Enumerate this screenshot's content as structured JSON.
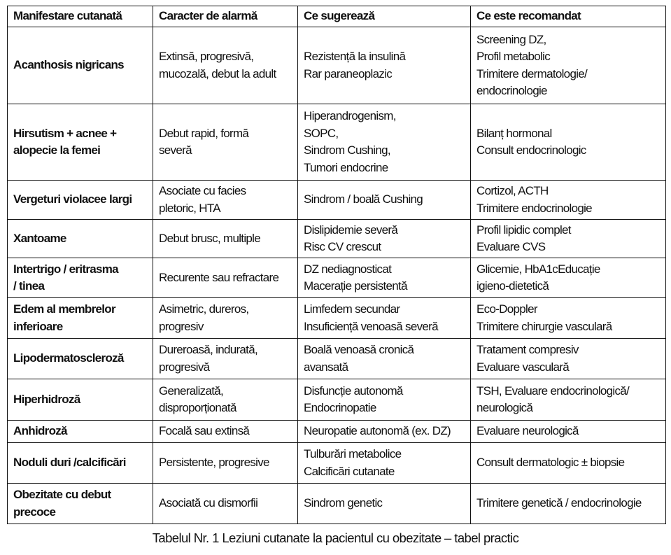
{
  "table": {
    "headers": [
      "Manifestare cutanată",
      "Caracter de alarmă",
      "Ce sugerează",
      "Ce este recomandat"
    ],
    "rows": [
      [
        "Acanthosis nigricans",
        "Extinsă, progresivă,\nmucozală, debut la adult",
        "Rezistență la insulină\nRar paraneoplazic",
        "Screening DZ,\nProfil metabolic\nTrimitere dermatologie/\nendocrinologie"
      ],
      [
        "Hirsutism + acnee +\nalopecie la femei",
        "Debut rapid, formă\nsevеră",
        "Hiperandrogenism,\nSOPC,\nSindrom Cushing,\nTumori endocrine",
        "Bilanț hormonal\nConsult endocrinologic"
      ],
      [
        "Vergeturi violacee largi",
        "Asociate cu facies\npletoric, HTA",
        "Sindrom / boală Cushing",
        "Cortizol, ACTH\nTrimitere endocrinologie"
      ],
      [
        "Xantoame",
        "Debut brusc, multiple",
        "Dislipidemie severă\nRisc CV crescut",
        "Profil lipidic complet\nEvaluare CVS"
      ],
      [
        "Intertrigo / eritrasma\n/ tinea",
        "Recurente sau refractare",
        "DZ nediagnosticat\nMacerație persistentă",
        "Glicemie, HbA1cEducație\nigieno-dietetică"
      ],
      [
        "Edem al membrelor\ninferioare",
        "Asimetric, dureros,\nprogresiv",
        "Limfedem secundar\nInsuficiență venoasă severă",
        "Eco-Doppler\nTrimitere chirurgie vasculară"
      ],
      [
        "Lipodermatoscleroză",
        "Dureroasă, indurată,\nprogresivă",
        "Boală venoasă cronică\navansată",
        "Tratament compresiv\nEvaluare vasculară"
      ],
      [
        "Hiperhidroză",
        "Generalizată,\ndisproporționată",
        "Disfuncție autonomă\nEndocrinopatie",
        "TSH, Evaluare endocrinologică/\nneurologică"
      ],
      [
        "Anhidroză",
        "Focală sau extinsă",
        "Neuropatie autonomă (ex. DZ)",
        "Evaluare neurologică"
      ],
      [
        "Noduli duri /calcificări",
        "Persistente, progresive",
        "Tulburări metabolice\nCalcificări cutanate",
        "Consult dermatologic ± biopsie"
      ],
      [
        "Obezitate cu debut\nprecoce",
        "Asociată cu dismorfii",
        "Sindrom genetic",
        "Trimitere genetică / endocrinologie"
      ]
    ]
  },
  "caption": "Tabelul Nr. 1 Leziuni cutanate la pacientul cu obezitate – tabel practic"
}
